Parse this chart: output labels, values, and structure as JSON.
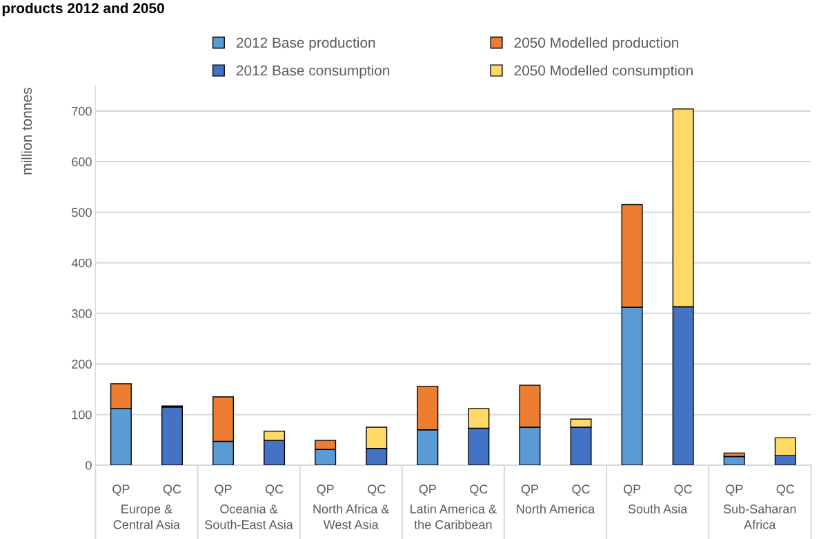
{
  "chart_data": {
    "type": "bar",
    "stacked": true,
    "title": "products 2012 and 2050",
    "ylabel": "million tonnes",
    "categories": [
      "QP",
      "QC",
      "QP",
      "QC",
      "QP",
      "QC",
      "QP",
      "QC",
      "QP",
      "QC",
      "QP",
      "QC",
      "QP",
      "QC"
    ],
    "annotations": [
      "Europe &\nCentral Asia",
      "Oceania &\nSouth-East Asia",
      "North Africa &\nWest Asia",
      "Latin America &\nthe Caribbean",
      "North America",
      "South Asia",
      "Sub-Saharan\nAfrica"
    ],
    "series": [
      {
        "name": "2012 Base production",
        "color": "#5b9bd5",
        "values": [
          112,
          null,
          47,
          null,
          31,
          null,
          70,
          null,
          75,
          null,
          312,
          null,
          17,
          null
        ]
      },
      {
        "name": "2012 Base consumption",
        "color": "#4472c4",
        "values": [
          null,
          115,
          null,
          49,
          null,
          33,
          null,
          73,
          null,
          75,
          null,
          313,
          null,
          19
        ]
      },
      {
        "name": "2050 Modelled production",
        "color": "#ed7d31",
        "values": [
          49,
          null,
          88,
          null,
          18,
          null,
          86,
          null,
          83,
          null,
          203,
          null,
          7,
          null
        ]
      },
      {
        "name": "2050 Modelled consumption",
        "color": "#ffd966",
        "values": [
          null,
          2,
          null,
          18,
          null,
          42,
          null,
          39,
          null,
          16,
          null,
          391,
          null,
          35
        ]
      }
    ],
    "ylim": [
      0,
      750
    ],
    "yticks": [
      0,
      100,
      200,
      300,
      400,
      500,
      600,
      700
    ],
    "grid": "y",
    "legend": "top"
  }
}
